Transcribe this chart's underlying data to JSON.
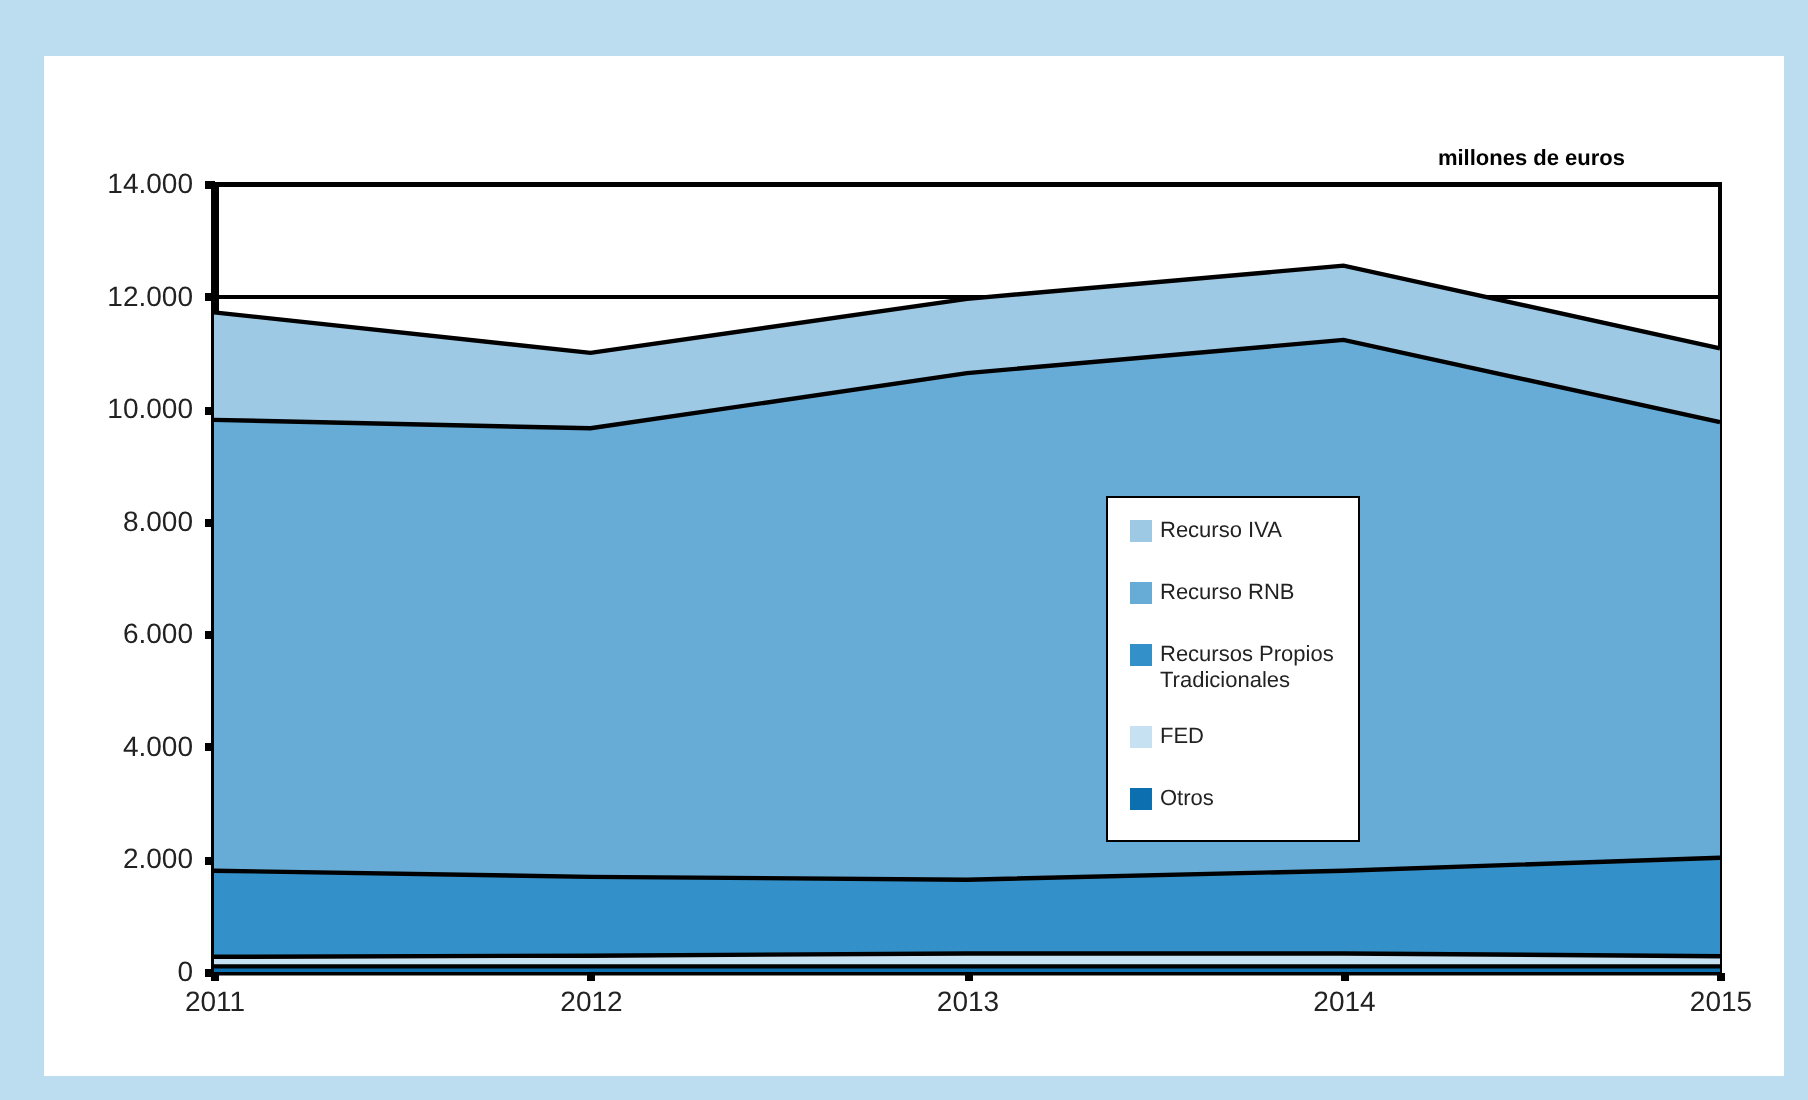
{
  "chart_data": {
    "type": "area",
    "stacked": true,
    "ylabel": "millones de euros",
    "x": [
      2011,
      2012,
      2013,
      2014,
      2015
    ],
    "xlim": [
      2011,
      2015
    ],
    "xticks": [
      2011,
      2012,
      2013,
      2014,
      2015
    ],
    "ylim": [
      0,
      14000
    ],
    "yticks": [
      0,
      {
        "value": 2000,
        "label": "2.000"
      },
      {
        "value": 4000,
        "label": "4.000"
      },
      {
        "value": 6000,
        "label": "6.000"
      },
      {
        "value": 8000,
        "label": "8.000"
      },
      {
        "value": 10000,
        "label": "10.000"
      },
      {
        "value": 12000,
        "label": "12.000"
      },
      {
        "value": 14000,
        "label": "14.000"
      }
    ],
    "grid": "y",
    "legend": "right",
    "series": [
      {
        "name": "Otros",
        "color": "#0b6fb0",
        "values": [
          100,
          100,
          100,
          100,
          100
        ]
      },
      {
        "name": "FED",
        "color": "#c6e2f2",
        "values": [
          170,
          190,
          230,
          230,
          180
        ]
      },
      {
        "name": "Recursos Propios Tradicionales",
        "color": "#3390c8",
        "values": [
          1530,
          1400,
          1310,
          1470,
          1750
        ]
      },
      {
        "name": "Recurso RNB",
        "color": "#67acd6",
        "values": [
          8010,
          7970,
          9000,
          9430,
          7740
        ]
      },
      {
        "name": "Recurso IVA",
        "color": "#9dc9e5",
        "values": [
          1910,
          1340,
          1320,
          1320,
          1310
        ]
      }
    ]
  }
}
